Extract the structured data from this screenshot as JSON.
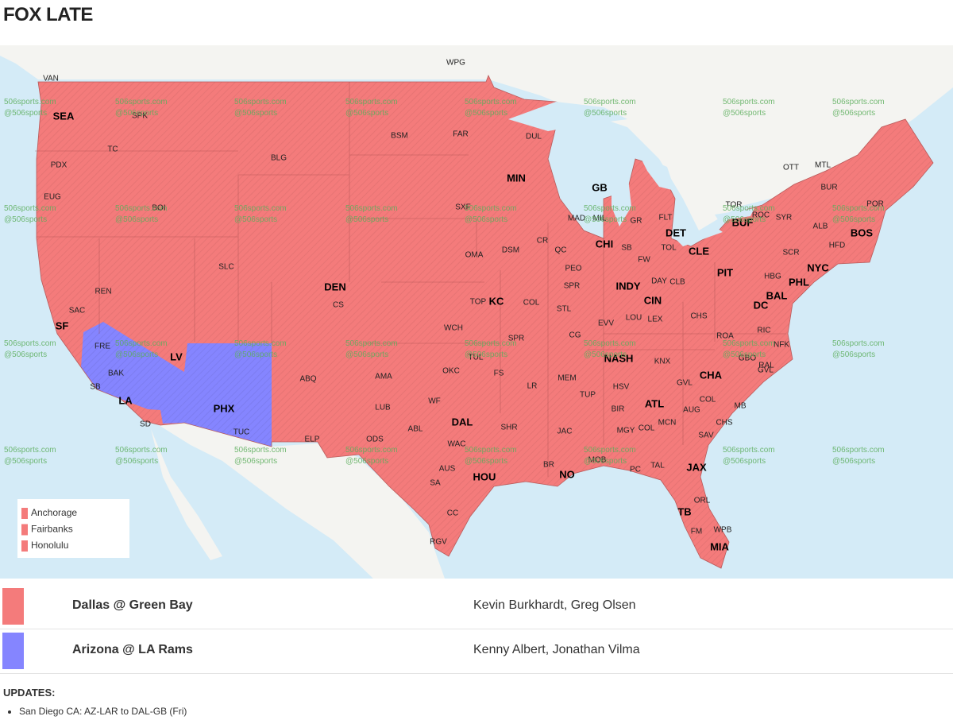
{
  "title": "FOX LATE",
  "map": {
    "cities": [
      "WPG",
      "VAN",
      "SEA",
      "SPK",
      "TC",
      "PDX",
      "EUG",
      "BOI",
      "BLG",
      "BSM",
      "FAR",
      "DUL",
      "MIN",
      "GB",
      "OTT",
      "MTL",
      "BUR",
      "POR",
      "TOR",
      "ROC",
      "SYR",
      "BUF",
      "ALB",
      "BOS",
      "HFD",
      "SCR",
      "NYC",
      "SXF",
      "MAD",
      "MIL",
      "GR",
      "FLT",
      "DET",
      "TOL",
      "CLE",
      "SB",
      "FW",
      "CHI",
      "CR",
      "QC",
      "OMA",
      "DSM",
      "SLC",
      "PEO",
      "PIT",
      "HBG",
      "PHL",
      "DEN",
      "CS",
      "SPR",
      "INDY",
      "DAY",
      "CLB",
      "REN",
      "BAL",
      "DC",
      "TOP",
      "KC",
      "COL",
      "STL",
      "CIN",
      "SAC",
      "LOU",
      "LEX",
      "EVV",
      "CHS",
      "SF",
      "WCH",
      "RIC",
      "ROA",
      "NFK",
      "CG",
      "SPR",
      "FRE",
      "TUL",
      "NASH",
      "GBO",
      "KNX",
      "RAL",
      "GVL",
      "LV",
      "BAK",
      "OKC",
      "FS",
      "MEM",
      "AMA",
      "ABQ",
      "CHA",
      "SB",
      "LA",
      "LR",
      "HSV",
      "TUP",
      "GVL",
      "COL",
      "MB",
      "AUG",
      "WF",
      "PHX",
      "LUB",
      "ATL",
      "BIR",
      "SD",
      "CHS",
      "MCN",
      "TUC",
      "DAL",
      "SHR",
      "ABL",
      "JAC",
      "MGY",
      "COL",
      "SAV",
      "ELP",
      "ODS",
      "WAC",
      "MOB",
      "TAL",
      "PC",
      "JAX",
      "AUS",
      "BR",
      "NO",
      "HOU",
      "SA",
      "ORL",
      "TB",
      "CC",
      "FM",
      "WPB",
      "MIA",
      "RGV"
    ],
    "watermark": [
      "506sports.com",
      "@506sports"
    ],
    "inset_legend": {
      "color": "#f47b7b",
      "items": [
        "Anchorage",
        "Fairbanks",
        "Honolulu"
      ]
    }
  },
  "games": [
    {
      "matchup": "Dallas @ Green Bay",
      "announcers": "Kevin Burkhardt, Greg Olsen",
      "color": "#f47b7b"
    },
    {
      "matchup": "Arizona @ LA Rams",
      "announcers": "Kenny Albert, Jonathan Vilma",
      "color": "#8585ff"
    }
  ],
  "updates": {
    "heading": "UPDATES:",
    "items": [
      "San Diego CA: AZ-LAR to DAL-GB (Fri)"
    ]
  }
}
